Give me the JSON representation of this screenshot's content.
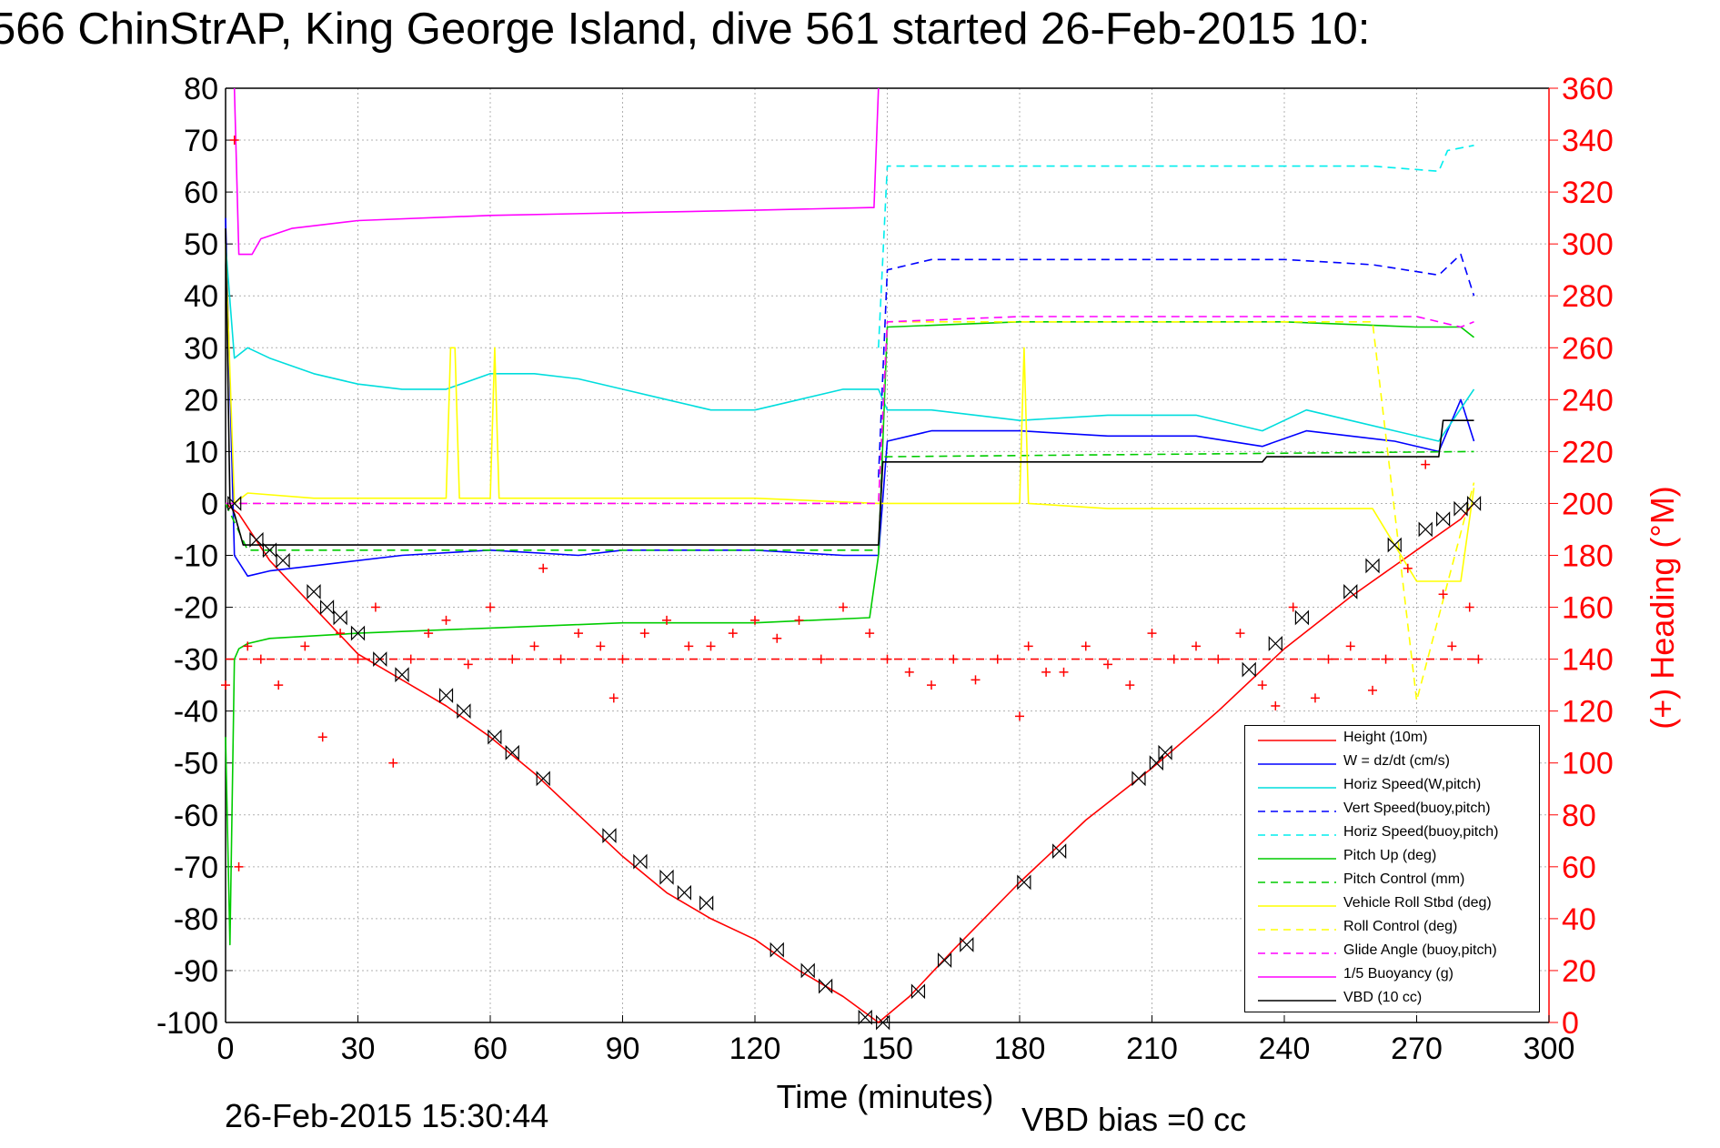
{
  "title": "566 ChinStrAP, King George Island, dive 561 started 26-Feb-2015 10:",
  "footer": {
    "timestamp": "26-Feb-2015 15:30:44",
    "vbd_bias": "VBD bias =0 cc"
  },
  "chart_data": {
    "type": "line",
    "title": "566 ChinStrAP, King George Island, dive 561 started 26-Feb-2015 10:",
    "xlabel": "Time (minutes)",
    "ylabel": "",
    "y2label": "(+) Heading (°M)",
    "xlim": [
      0,
      300
    ],
    "ylim": [
      -100,
      80
    ],
    "y2lim": [
      0,
      360
    ],
    "xticks": [
      0,
      30,
      60,
      90,
      120,
      150,
      180,
      210,
      240,
      270,
      300
    ],
    "yticks": [
      -100,
      -90,
      -80,
      -70,
      -60,
      -50,
      -40,
      -30,
      -20,
      -10,
      0,
      10,
      20,
      30,
      40,
      50,
      60,
      70,
      80
    ],
    "y2ticks": [
      0,
      20,
      40,
      60,
      80,
      100,
      120,
      140,
      160,
      180,
      200,
      220,
      240,
      260,
      280,
      300,
      320,
      340,
      360
    ],
    "grid": true,
    "legend_position": "bottom-right",
    "series": [
      {
        "name": "Height (10m)",
        "color": "#ff0000",
        "style": "solid",
        "axis": "left",
        "x": [
          0,
          3,
          10,
          20,
          30,
          40,
          50,
          60,
          70,
          80,
          90,
          100,
          110,
          120,
          130,
          140,
          148,
          155,
          165,
          180,
          195,
          210,
          225,
          240,
          255,
          270,
          280,
          283
        ],
        "y": [
          0,
          -2,
          -11,
          -20,
          -29,
          -34,
          -39,
          -45,
          -52,
          -60,
          -68,
          -75,
          -80,
          -84,
          -90,
          -95,
          -100,
          -95,
          -86,
          -73,
          -61,
          -51,
          -40,
          -28,
          -18,
          -9,
          -3,
          0
        ]
      },
      {
        "name": "W = dz/dt (cm/s)",
        "color": "#0000ff",
        "style": "solid",
        "axis": "left",
        "x": [
          0,
          2,
          5,
          10,
          20,
          40,
          60,
          80,
          90,
          100,
          120,
          140,
          148,
          150,
          160,
          180,
          200,
          220,
          235,
          245,
          255,
          265,
          275,
          280,
          283
        ],
        "y": [
          55,
          -10,
          -14,
          -13,
          -12,
          -10,
          -9,
          -10,
          -9,
          -9,
          -9,
          -10,
          -10,
          12,
          14,
          14,
          13,
          13,
          11,
          14,
          13,
          12,
          10,
          20,
          12
        ]
      },
      {
        "name": "Horiz Speed(W,pitch)",
        "color": "#00dddd",
        "style": "solid",
        "axis": "left",
        "x": [
          0,
          2,
          5,
          10,
          20,
          30,
          40,
          50,
          60,
          70,
          80,
          90,
          100,
          110,
          120,
          130,
          140,
          148,
          150,
          160,
          170,
          180,
          200,
          220,
          235,
          245,
          255,
          265,
          275,
          283
        ],
        "y": [
          50,
          28,
          30,
          28,
          25,
          23,
          22,
          22,
          25,
          25,
          24,
          22,
          20,
          18,
          18,
          20,
          22,
          22,
          18,
          18,
          17,
          16,
          17,
          17,
          14,
          18,
          16,
          14,
          12,
          22
        ]
      },
      {
        "name": "Vert Speed(buoy,pitch)",
        "color": "#0000ff",
        "style": "dashed",
        "axis": "left",
        "x": [
          148,
          150,
          160,
          180,
          200,
          220,
          240,
          260,
          275,
          280,
          283
        ],
        "y": [
          5,
          45,
          47,
          47,
          47,
          47,
          47,
          46,
          44,
          48,
          40
        ]
      },
      {
        "name": "Horiz Speed(buoy,pitch)",
        "color": "#00eeee",
        "style": "dashed",
        "axis": "left",
        "x": [
          148,
          150,
          180,
          210,
          240,
          260,
          275,
          277,
          283
        ],
        "y": [
          30,
          65,
          65,
          65,
          65,
          65,
          64,
          68,
          69
        ]
      },
      {
        "name": "Pitch Up (deg)",
        "color": "#00cc00",
        "style": "solid",
        "axis": "left",
        "x": [
          0,
          1,
          2,
          3,
          5,
          10,
          30,
          60,
          90,
          120,
          146,
          148,
          150,
          180,
          210,
          240,
          270,
          280,
          283
        ],
        "y": [
          -45,
          -85,
          -30,
          -28,
          -27,
          -26,
          -25,
          -24,
          -23,
          -23,
          -22,
          -10,
          34,
          35,
          35,
          35,
          34,
          34,
          32
        ]
      },
      {
        "name": "Pitch Control (mm)",
        "color": "#00cc00",
        "style": "dashed",
        "axis": "left",
        "x": [
          0,
          5,
          148,
          149,
          283
        ],
        "y": [
          0,
          -9,
          -9,
          9,
          10
        ]
      },
      {
        "name": "Vehicle Roll Stbd (deg)",
        "color": "#ffff00",
        "style": "solid",
        "axis": "left",
        "x": [
          0,
          2,
          5,
          20,
          50,
          51,
          52,
          53,
          60,
          61,
          62,
          90,
          100,
          120,
          148,
          150,
          180,
          181,
          182,
          200,
          230,
          260,
          270,
          280,
          283
        ],
        "y": [
          50,
          0,
          2,
          1,
          1,
          30,
          30,
          1,
          1,
          30,
          1,
          1,
          1,
          1,
          0,
          0,
          0,
          30,
          0,
          -1,
          -1,
          -1,
          -15,
          -15,
          3
        ]
      },
      {
        "name": "Roll Control (deg)",
        "color": "#ffff00",
        "style": "dashed",
        "axis": "left",
        "x": [
          0,
          5,
          148,
          150,
          200,
          230,
          260,
          270,
          283
        ],
        "y": [
          0,
          0,
          0,
          35,
          35,
          35,
          35,
          -38,
          4
        ]
      },
      {
        "name": "Glide Angle (buoy,pitch)",
        "color": "#ff00ff",
        "style": "dashed",
        "axis": "left",
        "x": [
          0,
          148,
          150,
          180,
          210,
          240,
          270,
          280,
          283
        ],
        "y": [
          0,
          0,
          35,
          36,
          36,
          36,
          36,
          34,
          35
        ]
      },
      {
        "name": "1/5 Buoyancy (g)",
        "color": "#ff00ff",
        "style": "solid",
        "axis": "left",
        "x": [
          2,
          3,
          6,
          8,
          15,
          30,
          60,
          90,
          120,
          146,
          147,
          148
        ],
        "y": [
          80,
          48,
          48,
          51,
          53,
          54.5,
          55.5,
          56,
          56.5,
          57,
          57,
          80
        ]
      },
      {
        "name": "VBD (10 cc)",
        "color": "#000000",
        "style": "solid",
        "axis": "left",
        "x": [
          0,
          1,
          2,
          4,
          148,
          149,
          150,
          180,
          210,
          235,
          236,
          275,
          276,
          283
        ],
        "y": [
          53,
          0,
          -2,
          -8,
          -8,
          8,
          8,
          8,
          8,
          8,
          9,
          9,
          16,
          16
        ]
      },
      {
        "name": "Heading",
        "color": "#ff0000",
        "style": "plus",
        "axis": "right",
        "unlisted": true,
        "x": [
          0,
          2,
          3,
          5,
          8,
          12,
          18,
          22,
          26,
          30,
          34,
          38,
          42,
          46,
          50,
          55,
          60,
          65,
          70,
          72,
          76,
          80,
          85,
          88,
          90,
          95,
          100,
          105,
          110,
          115,
          120,
          125,
          130,
          135,
          140,
          146,
          150,
          155,
          160,
          165,
          170,
          175,
          180,
          182,
          186,
          190,
          195,
          200,
          205,
          210,
          215,
          220,
          225,
          230,
          235,
          238,
          242,
          247,
          250,
          255,
          260,
          263,
          268,
          272,
          276,
          278,
          282,
          284
        ],
        "y": [
          130,
          340,
          60,
          145,
          140,
          130,
          145,
          110,
          150,
          140,
          160,
          100,
          140,
          150,
          155,
          138,
          160,
          140,
          145,
          175,
          140,
          150,
          145,
          125,
          140,
          150,
          155,
          145,
          145,
          150,
          155,
          148,
          155,
          140,
          160,
          150,
          140,
          135,
          130,
          140,
          132,
          140,
          118,
          145,
          135,
          135,
          145,
          138,
          130,
          150,
          140,
          145,
          140,
          150,
          130,
          122,
          160,
          125,
          140,
          145,
          128,
          140,
          175,
          215,
          165,
          145,
          160,
          140
        ]
      },
      {
        "name": "Heading target",
        "color": "#ff0000",
        "style": "dashed",
        "axis": "right",
        "unlisted": true,
        "x": [
          0,
          283
        ],
        "y": [
          140,
          140
        ]
      }
    ],
    "markers": {
      "name": "GPS/depth samples",
      "color": "#000000",
      "x": [
        2,
        7,
        10,
        13,
        20,
        23,
        26,
        30,
        35,
        40,
        50,
        54,
        61,
        65,
        72,
        87,
        94,
        100,
        104,
        109,
        125,
        132,
        136,
        145,
        149,
        157,
        163,
        168,
        181,
        189,
        207,
        211,
        213,
        232,
        238,
        244,
        255,
        260,
        265,
        272,
        276,
        280,
        283
      ],
      "y": [
        0,
        -7,
        -9,
        -11,
        -17,
        -20,
        -22,
        -25,
        -30,
        -33,
        -37,
        -40,
        -45,
        -48,
        -53,
        -64,
        -69,
        -72,
        -75,
        -77,
        -86,
        -90,
        -93,
        -99,
        -100,
        -94,
        -88,
        -85,
        -73,
        -67,
        -53,
        -50,
        -48,
        -32,
        -27,
        -22,
        -17,
        -12,
        -8,
        -5,
        -3,
        -1,
        0
      ]
    }
  },
  "legend_items": [
    {
      "label": "Height (10m)"
    },
    {
      "label": "W = dz/dt (cm/s)"
    },
    {
      "label": "Horiz Speed(W,pitch)"
    },
    {
      "label": "Vert Speed(buoy,pitch)"
    },
    {
      "label": "Horiz Speed(buoy,pitch)"
    },
    {
      "label": "Pitch Up (deg)"
    },
    {
      "label": "Pitch Control (mm)"
    },
    {
      "label": "Vehicle Roll Stbd (deg)"
    },
    {
      "label": "Roll Control (deg)"
    },
    {
      "label": "Glide Angle (buoy,pitch)"
    },
    {
      "label": "1/5 Buoyancy (g)"
    },
    {
      "label": "VBD (10 cc)"
    }
  ]
}
